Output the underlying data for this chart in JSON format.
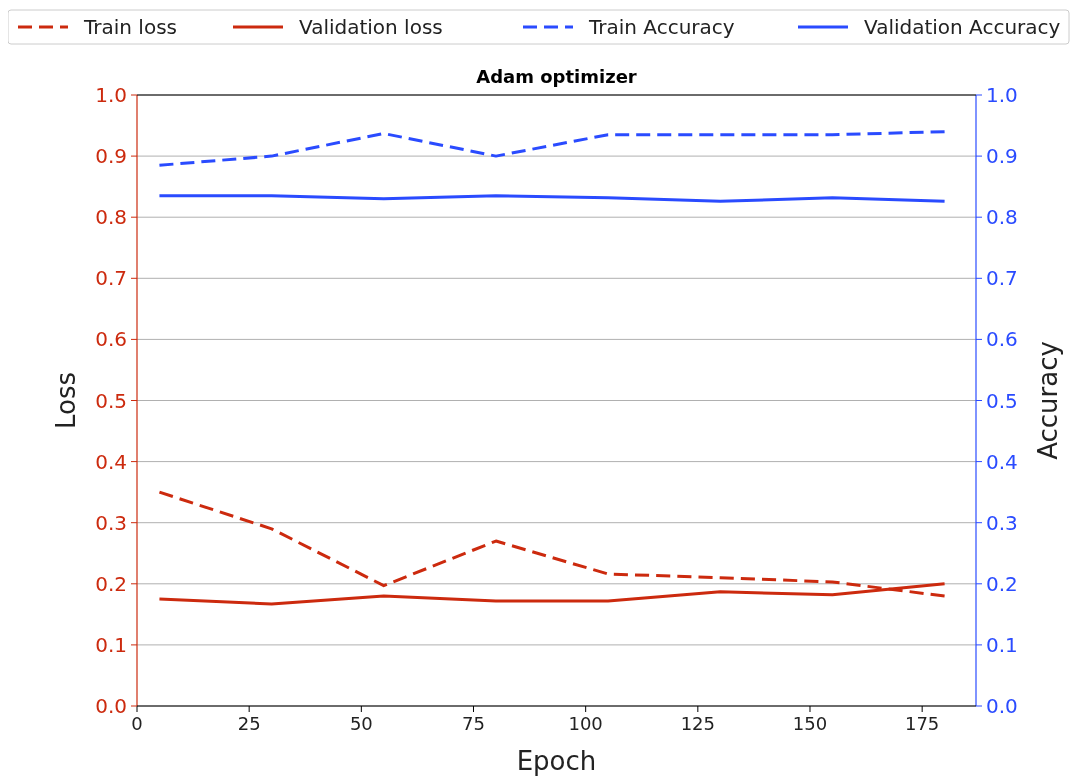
{
  "chart_data": {
    "type": "line",
    "title": "Adam optimizer",
    "xlabel": "Epoch",
    "ylabel": "Loss",
    "y2label": "Accuracy",
    "x": [
      5,
      30,
      55,
      80,
      105,
      130,
      155,
      180
    ],
    "series": [
      {
        "name": "Train loss",
        "color": "#cc2a0e",
        "line_style": "dashed",
        "values": [
          0.35,
          0.29,
          0.197,
          0.27,
          0.216,
          0.21,
          0.203,
          0.18
        ]
      },
      {
        "name": "Validation loss",
        "color": "#cc2a0e",
        "line_style": "solid",
        "values": [
          0.175,
          0.167,
          0.18,
          0.172,
          0.172,
          0.187,
          0.182,
          0.2
        ]
      },
      {
        "name": "Train Accuracy",
        "color": "#2a4bff",
        "line_style": "dashed",
        "axis": "y2",
        "values": [
          0.885,
          0.9,
          0.937,
          0.9,
          0.935,
          0.935,
          0.935,
          0.94
        ]
      },
      {
        "name": "Validation Accuracy",
        "color": "#2a4bff",
        "line_style": "solid",
        "axis": "y2",
        "values": [
          0.835,
          0.835,
          0.83,
          0.835,
          0.832,
          0.826,
          0.832,
          0.826
        ]
      }
    ],
    "xlim": [
      0,
      187
    ],
    "xticks": [
      0,
      25,
      50,
      75,
      100,
      125,
      150,
      175
    ],
    "ylim": [
      0,
      1
    ],
    "yticks": [
      {
        "value": 0,
        "label": "0.0"
      },
      {
        "value": 0.1,
        "label": "0.1"
      },
      {
        "value": 0.2,
        "label": "0.2"
      },
      {
        "value": 0.3,
        "label": "0.3"
      },
      {
        "value": 0.4,
        "label": "0.4"
      },
      {
        "value": 0.5,
        "label": "0.5"
      },
      {
        "value": 0.6,
        "label": "0.6"
      },
      {
        "value": 0.7,
        "label": "0.7"
      },
      {
        "value": 0.8,
        "label": "0.8"
      },
      {
        "value": 0.9,
        "label": "0.9"
      },
      {
        "value": 1,
        "label": "1.0"
      }
    ],
    "y2lim": [
      0,
      1
    ],
    "y2ticks": [
      {
        "value": 0,
        "label": "0.0"
      },
      {
        "value": 0.1,
        "label": "0.1"
      },
      {
        "value": 0.2,
        "label": "0.2"
      },
      {
        "value": 0.3,
        "label": "0.3"
      },
      {
        "value": 0.4,
        "label": "0.4"
      },
      {
        "value": 0.5,
        "label": "0.5"
      },
      {
        "value": 0.6,
        "label": "0.6"
      },
      {
        "value": 0.7,
        "label": "0.7"
      },
      {
        "value": 0.8,
        "label": "0.8"
      },
      {
        "value": 0.9,
        "label": "0.9"
      },
      {
        "value": 1,
        "label": "1.0"
      }
    ],
    "grid": "y",
    "legend": "top",
    "marker": "none"
  }
}
